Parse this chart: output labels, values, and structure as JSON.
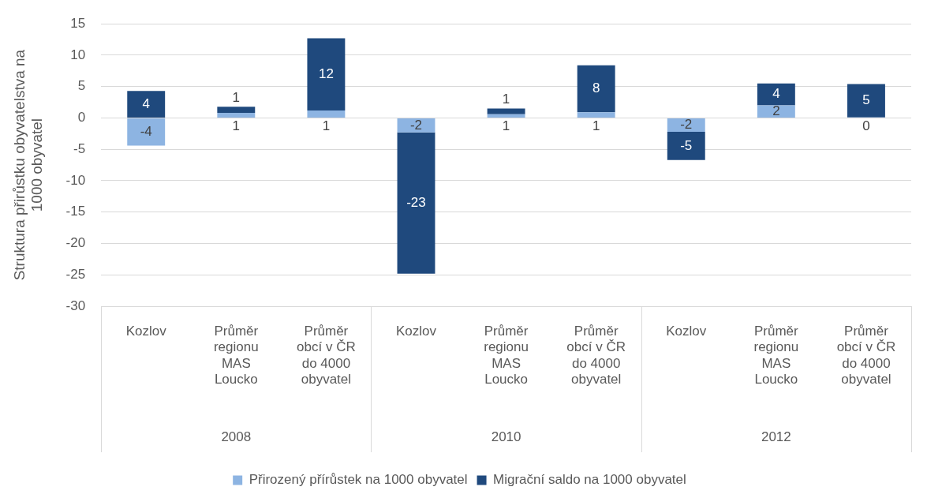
{
  "chart_data": {
    "type": "bar",
    "stacked": true,
    "ylabel": "Struktura přirůstku obyvatelstva na 1000 obyvatel",
    "categories": [
      "Kozlov",
      "Průměr regionu MAS Loucko",
      "Průměr obcí v ČR do 4000 obyvatel",
      "Kozlov",
      "Průměr regionu MAS Loucko",
      "Průměr obcí v ČR do 4000 obyvatel",
      "Kozlov",
      "Průměr regionu MAS Loucko",
      "Průměr obcí v ČR do 4000 obyvatel"
    ],
    "annotations": [
      "2008",
      "2010",
      "2012"
    ],
    "series": [
      {
        "name": "Přirozený přírůstek na 1000 obyvatel",
        "color": "#8db4e2",
        "values": [
          -4.4,
          0.8,
          1.2,
          -2.3,
          0.6,
          0.9,
          -2.2,
          2.0,
          0.1
        ],
        "value_labels": [
          "-4",
          "1",
          "1",
          "-2",
          "1",
          "1",
          "-2",
          "2",
          "0"
        ]
      },
      {
        "name": "Migrační saldo na 1000 obyvatel",
        "color": "#1f497d",
        "values": [
          4.3,
          1.0,
          11.5,
          -22.5,
          0.9,
          7.5,
          -4.5,
          3.5,
          5.3
        ],
        "value_labels": [
          "4",
          "1",
          "12",
          "-23",
          "1",
          "8",
          "-5",
          "4",
          "5"
        ]
      }
    ],
    "ylim": [
      -30,
      15
    ],
    "yticks": [
      -30,
      -25,
      -20,
      -15,
      -10,
      -5,
      0,
      5,
      10,
      15
    ],
    "grid": "y",
    "legend": "bottom"
  }
}
